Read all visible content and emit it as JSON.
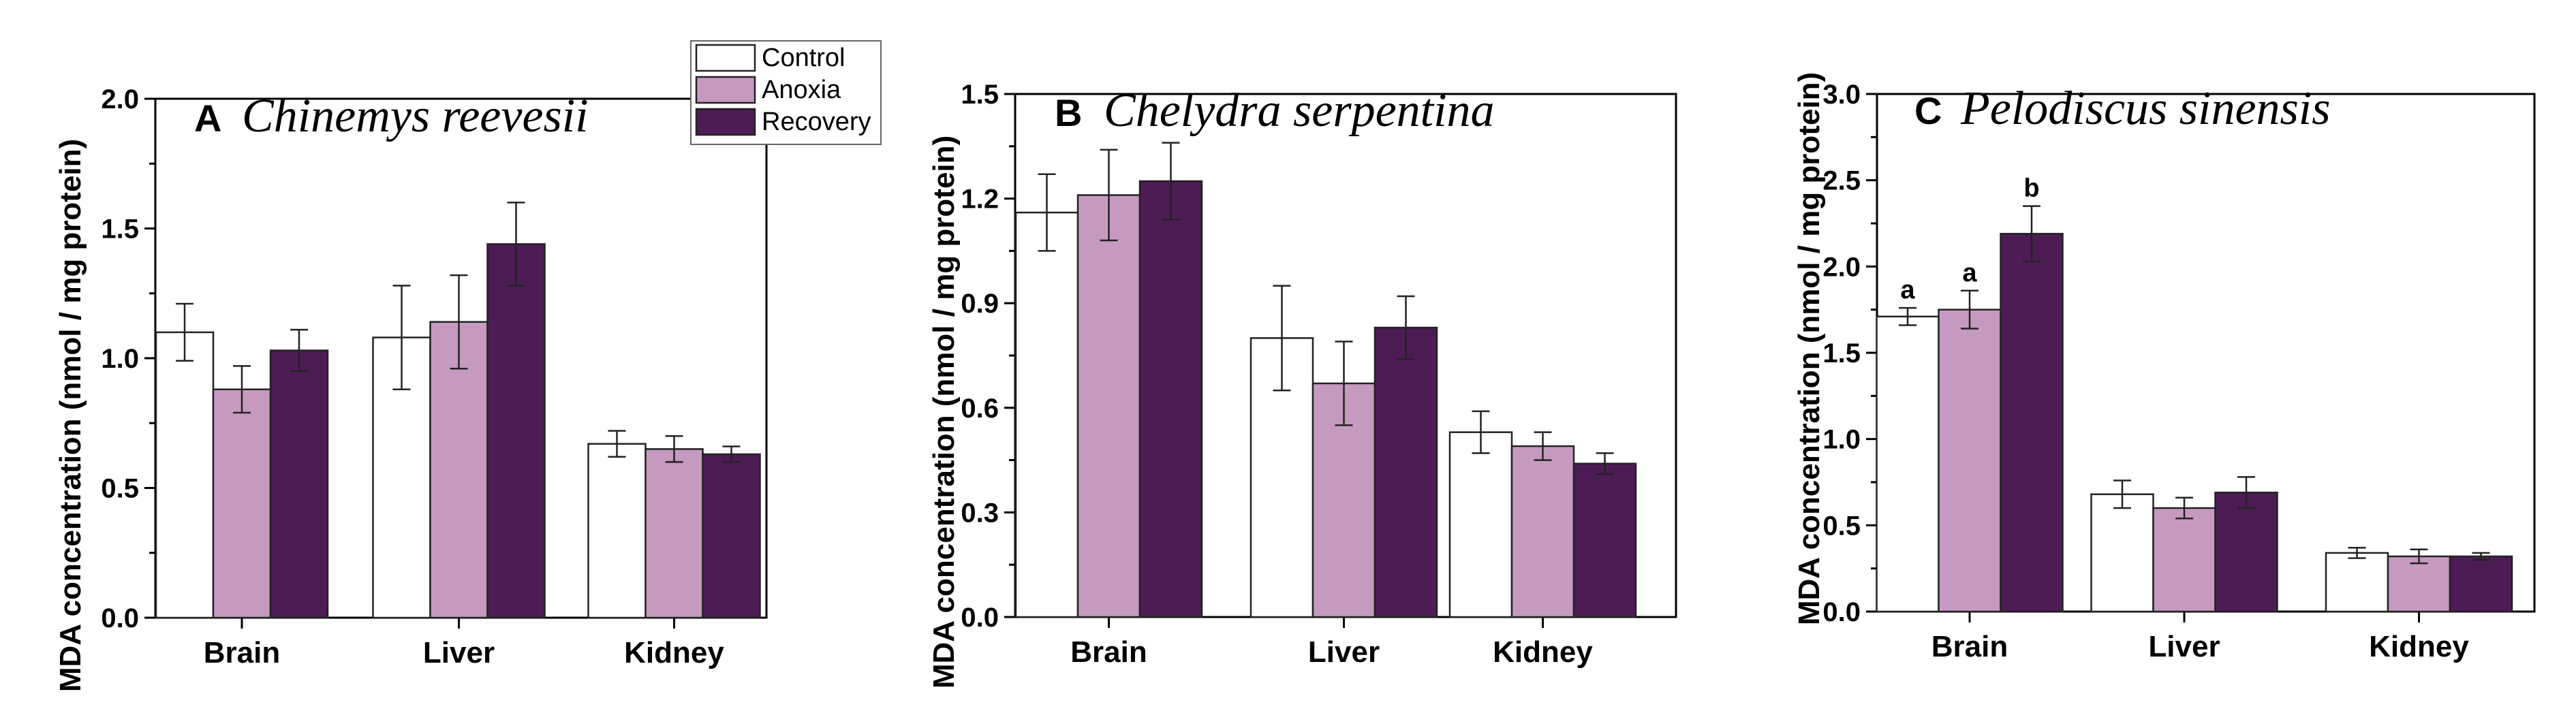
{
  "colors": {
    "Control": "#ffffff",
    "Anoxia": "#c69ac0",
    "Recovery": "#4d1c55",
    "stroke": "#222222"
  },
  "legend": {
    "items": [
      "Control",
      "Anoxia",
      "Recovery"
    ]
  },
  "chart_data": [
    {
      "type": "bar",
      "panel_letter": "A",
      "title": "Chinemys reevesii",
      "ylabel": "MDA concentration (nmol / mg protein)",
      "xlabel": "",
      "categories": [
        "Brain",
        "Liver",
        "Kidney"
      ],
      "ylim": [
        0,
        2.0
      ],
      "yticks": [
        0.0,
        0.5,
        1.0,
        1.5,
        2.0
      ],
      "ytick_labels": [
        "0.0",
        "0.5",
        "1.0",
        "1.5",
        "2.0"
      ],
      "series": [
        {
          "name": "Control",
          "values": [
            1.1,
            1.08,
            0.67
          ],
          "errors": [
            0.11,
            0.2,
            0.05
          ]
        },
        {
          "name": "Anoxia",
          "values": [
            0.88,
            1.14,
            0.65
          ],
          "errors": [
            0.09,
            0.18,
            0.05
          ]
        },
        {
          "name": "Recovery",
          "values": [
            1.03,
            1.44,
            0.63
          ],
          "errors": [
            0.08,
            0.16,
            0.03
          ]
        }
      ]
    },
    {
      "type": "bar",
      "panel_letter": "B",
      "title": "Chelydra serpentina",
      "ylabel": "MDA concentration (nmol / mg protein)",
      "xlabel": "",
      "categories": [
        "Brain",
        "Liver",
        "Kidney"
      ],
      "ylim": [
        0,
        1.5
      ],
      "yticks": [
        0.0,
        0.3,
        0.6,
        0.9,
        1.2,
        1.5
      ],
      "ytick_labels": [
        "0.0",
        "0.3",
        "0.6",
        "0.9",
        "1.2",
        "1.5"
      ],
      "series": [
        {
          "name": "Control",
          "values": [
            1.16,
            0.8,
            0.53
          ],
          "errors": [
            0.11,
            0.15,
            0.06
          ]
        },
        {
          "name": "Anoxia",
          "values": [
            1.21,
            0.67,
            0.49
          ],
          "errors": [
            0.13,
            0.12,
            0.04
          ]
        },
        {
          "name": "Recovery",
          "values": [
            1.25,
            0.83,
            0.44
          ],
          "errors": [
            0.11,
            0.09,
            0.03
          ]
        }
      ]
    },
    {
      "type": "bar",
      "panel_letter": "C",
      "title": "Pelodiscus sinensis",
      "ylabel": "MDA concentration (nmol / mg protein)",
      "xlabel": "",
      "categories": [
        "Brain",
        "Liver",
        "Kidney"
      ],
      "ylim": [
        0,
        3.0
      ],
      "yticks": [
        0.0,
        0.5,
        1.0,
        1.5,
        2.0,
        2.5,
        3.0
      ],
      "ytick_labels": [
        "0.0",
        "0.5",
        "1.0",
        "1.5",
        "2.0",
        "2.5",
        "3.0"
      ],
      "series": [
        {
          "name": "Control",
          "values": [
            1.71,
            0.68,
            0.34
          ],
          "errors": [
            0.05,
            0.08,
            0.03
          ]
        },
        {
          "name": "Anoxia",
          "values": [
            1.75,
            0.6,
            0.32
          ],
          "errors": [
            0.11,
            0.06,
            0.04
          ]
        },
        {
          "name": "Recovery",
          "values": [
            2.19,
            0.69,
            0.32
          ],
          "errors": [
            0.16,
            0.09,
            0.02
          ]
        }
      ],
      "annotations": [
        {
          "category": "Brain",
          "series": "Control",
          "text": "a"
        },
        {
          "category": "Brain",
          "series": "Anoxia",
          "text": "a"
        },
        {
          "category": "Brain",
          "series": "Recovery",
          "text": "b"
        }
      ]
    }
  ]
}
